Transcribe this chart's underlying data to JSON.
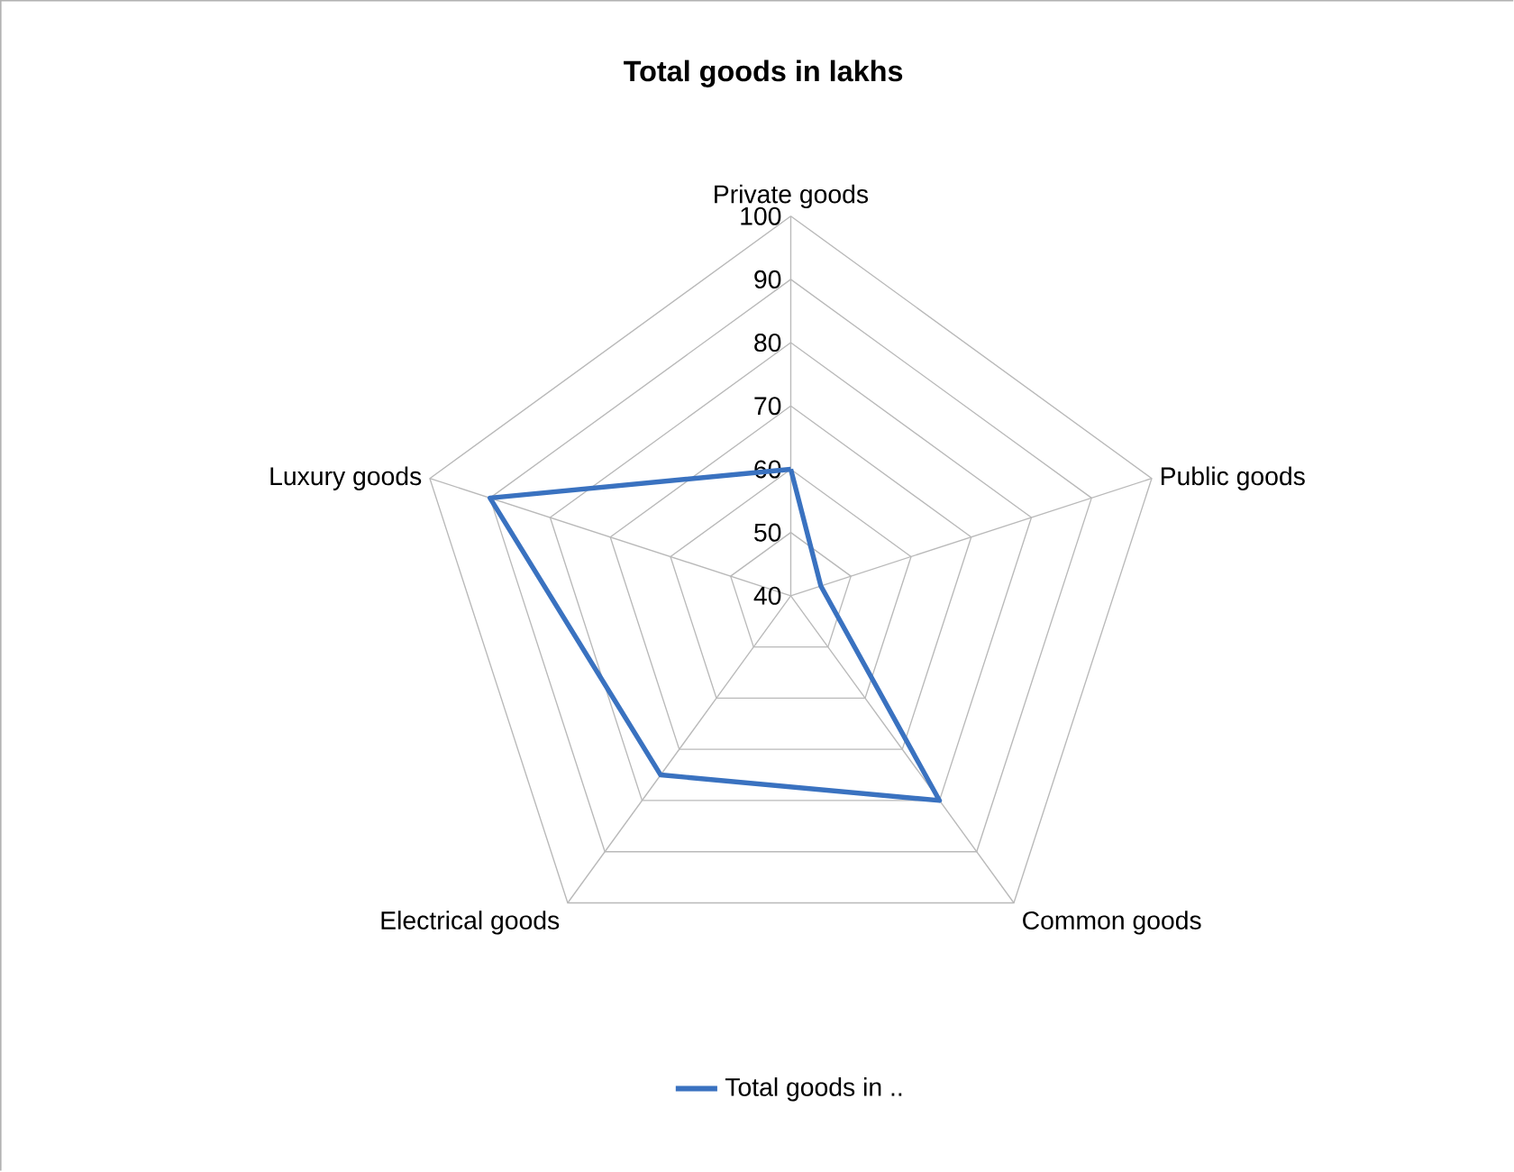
{
  "chart_data": {
    "type": "radar",
    "title": "Total goods in lakhs",
    "categories": [
      "Private goods",
      "Public goods",
      "Common goods",
      "Electrical  goods",
      "Luxury goods"
    ],
    "series": [
      {
        "name": "Total goods in ..",
        "color": "#3a72c0",
        "values": [
          60,
          45,
          80,
          75,
          90
        ]
      }
    ],
    "ylim": [
      40,
      100
    ],
    "yticks": [
      40,
      50,
      60,
      70,
      80,
      90,
      100
    ],
    "grid": true,
    "legend": "bottom"
  }
}
